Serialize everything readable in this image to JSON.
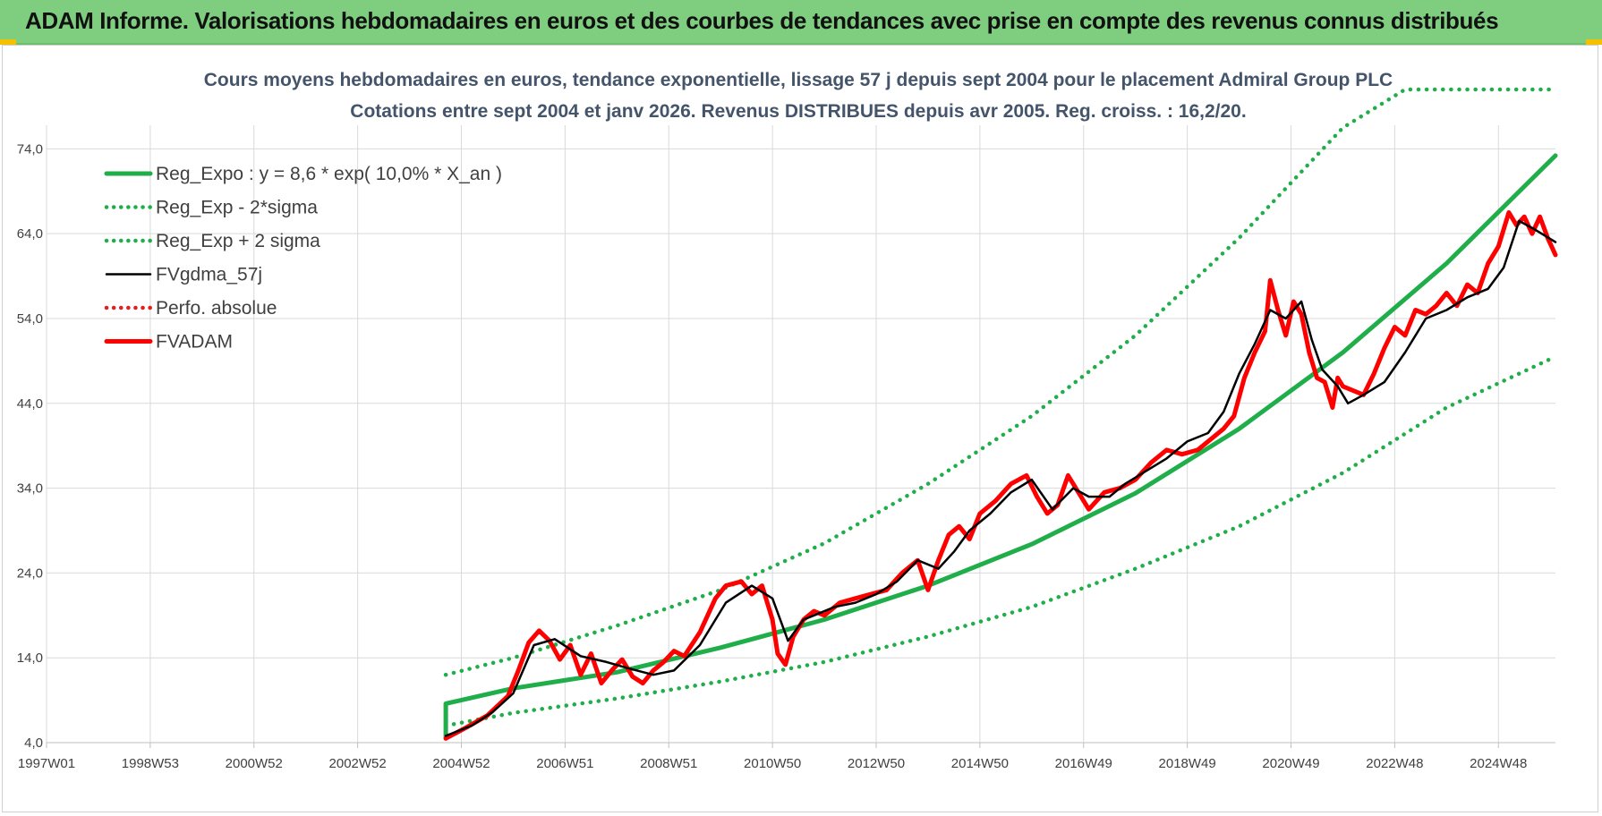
{
  "header": {
    "title": "ADAM Informe. Valorisations hebdomadaires en euros et des courbes de tendances avec prise en compte des revenus connus distribués"
  },
  "colors": {
    "header_bg": "#7fce7f",
    "trend": "#1fae4a",
    "band": "#1fae4a",
    "smooth": "#000000",
    "perf": "#e02020",
    "price": "#ff0000"
  },
  "chart_data": {
    "type": "line",
    "title": "Cours moyens hebdomadaires en euros, tendance exponentielle, lissage 57 j depuis sept 2004 pour le placement Admiral Group PLC",
    "subtitle": "Cotations entre sept 2004 et janv 2026. Revenus DISTRIBUES depuis avr 2005. Reg. croiss. : 16,2/20.",
    "xlabel": "",
    "ylabel": "",
    "x_range": [
      1997.0,
      2026.1
    ],
    "ylim": [
      4,
      81
    ],
    "y_ticks": [
      "4,0",
      "14,0",
      "24,0",
      "34,0",
      "44,0",
      "54,0",
      "64,0",
      "74,0"
    ],
    "y_tick_values": [
      4,
      14,
      24,
      34,
      44,
      54,
      64,
      74
    ],
    "x_ticks": [
      "1997W01",
      "1998W53",
      "2000W52",
      "2002W52",
      "2004W52",
      "2006W51",
      "2008W51",
      "2010W50",
      "2012W50",
      "2014W50",
      "2016W49",
      "2018W49",
      "2020W49",
      "2022W48",
      "2024W48"
    ],
    "x_tick_values": [
      1997.0,
      1999.0,
      2001.0,
      2003.0,
      2005.0,
      2007.0,
      2009.0,
      2011.0,
      2013.0,
      2015.0,
      2017.0,
      2019.0,
      2021.0,
      2023.0,
      2025.0
    ],
    "grid": true,
    "legend_position": "top-left",
    "series": [
      {
        "name": "Reg_Expo : y = 8,6 * exp( 10,0% *  X_an )",
        "style": "solid-thick",
        "color": "#1fae4a",
        "x": [
          2004.7,
          2004.7,
          2006,
          2008,
          2010,
          2012,
          2014,
          2016,
          2018,
          2020,
          2022,
          2024,
          2026.1
        ],
        "y": [
          4.5,
          8.6,
          10.4,
          12.3,
          15.2,
          18.5,
          22.5,
          27.4,
          33.4,
          41.0,
          50.0,
          60.5,
          73.2
        ]
      },
      {
        "name": "Reg_Exp - 2*sigma",
        "style": "dotted",
        "color": "#1fae4a",
        "x": [
          2004.7,
          2006,
          2008,
          2010,
          2012,
          2014,
          2016,
          2018,
          2020,
          2022,
          2024,
          2026.1
        ],
        "y": [
          6.0,
          7.5,
          9.2,
          11.2,
          13.5,
          16.5,
          20.0,
          24.5,
          29.5,
          35.8,
          43.5,
          49.5
        ]
      },
      {
        "name": "Reg_Exp + 2 sigma",
        "style": "dotted",
        "color": "#1fae4a",
        "x": [
          2004.7,
          2006,
          2008,
          2010,
          2012,
          2014,
          2016,
          2018,
          2020,
          2022,
          2023.2,
          2024,
          2026.1
        ],
        "y": [
          12.0,
          14.0,
          17.8,
          22.0,
          27.5,
          34.5,
          42.5,
          52.0,
          63.5,
          76.5,
          81.0,
          81.0,
          81.0
        ]
      },
      {
        "name": "FVgdma_57j",
        "style": "solid",
        "color": "#000000",
        "x": [
          2004.7,
          2005.2,
          2005.6,
          2006.0,
          2006.4,
          2006.8,
          2007.3,
          2007.8,
          2008.2,
          2008.7,
          2009.1,
          2009.6,
          2010.1,
          2010.6,
          2011.0,
          2011.3,
          2011.6,
          2011.8,
          2012.2,
          2012.6,
          2013.0,
          2013.4,
          2013.8,
          2014.2,
          2014.5,
          2014.8,
          2015.2,
          2015.6,
          2016.0,
          2016.4,
          2016.8,
          2017.1,
          2017.5,
          2017.8,
          2018.2,
          2018.6,
          2019.0,
          2019.4,
          2019.7,
          2020.0,
          2020.3,
          2020.6,
          2020.9,
          2021.2,
          2021.4,
          2021.6,
          2021.9,
          2022.1,
          2022.4,
          2022.8,
          2023.2,
          2023.6,
          2024.0,
          2024.4,
          2024.8,
          2025.1,
          2025.4,
          2025.7,
          2026.1
        ],
        "y": [
          4.8,
          6.0,
          7.6,
          9.8,
          15.5,
          16.2,
          14.2,
          13.5,
          12.8,
          12.0,
          12.5,
          15.5,
          20.5,
          22.5,
          21.0,
          16.0,
          18.5,
          19.0,
          20.0,
          20.5,
          21.5,
          23.0,
          25.5,
          24.5,
          26.5,
          29.0,
          31.0,
          33.5,
          35.0,
          31.5,
          34.0,
          33.0,
          33.0,
          34.5,
          36.0,
          37.5,
          39.5,
          40.5,
          43.0,
          47.5,
          51.0,
          55.0,
          54.0,
          56.0,
          51.5,
          48.0,
          46.0,
          44.0,
          45.0,
          46.5,
          50.0,
          54.0,
          55.0,
          56.5,
          57.5,
          60.0,
          65.5,
          64.5,
          63.0
        ]
      },
      {
        "name": "Perfo. absolue",
        "style": "dotted",
        "color": "#e02020",
        "x": [],
        "y": []
      },
      {
        "name": "FVADAM",
        "style": "solid-thick",
        "color": "#ff0000",
        "x": [
          2004.7,
          2005.1,
          2005.5,
          2005.9,
          2006.1,
          2006.3,
          2006.5,
          2006.7,
          2006.9,
          2007.1,
          2007.3,
          2007.5,
          2007.7,
          2007.9,
          2008.1,
          2008.3,
          2008.5,
          2008.7,
          2008.9,
          2009.1,
          2009.3,
          2009.6,
          2009.9,
          2010.1,
          2010.4,
          2010.6,
          2010.8,
          2011.0,
          2011.1,
          2011.25,
          2011.4,
          2011.6,
          2011.8,
          2012.0,
          2012.3,
          2012.6,
          2012.9,
          2013.2,
          2013.5,
          2013.8,
          2014.0,
          2014.2,
          2014.4,
          2014.6,
          2014.8,
          2015.0,
          2015.3,
          2015.6,
          2015.9,
          2016.1,
          2016.3,
          2016.5,
          2016.7,
          2016.9,
          2017.1,
          2017.4,
          2017.7,
          2018.0,
          2018.3,
          2018.6,
          2018.9,
          2019.2,
          2019.5,
          2019.7,
          2019.9,
          2020.1,
          2020.3,
          2020.5,
          2020.6,
          2020.75,
          2020.9,
          2021.05,
          2021.2,
          2021.35,
          2021.5,
          2021.65,
          2021.8,
          2021.9,
          2022.0,
          2022.2,
          2022.4,
          2022.6,
          2022.8,
          2023.0,
          2023.2,
          2023.4,
          2023.6,
          2023.8,
          2024.0,
          2024.2,
          2024.4,
          2024.6,
          2024.8,
          2025.0,
          2025.2,
          2025.35,
          2025.5,
          2025.65,
          2025.8,
          2025.95,
          2026.1
        ],
        "y": [
          4.5,
          5.8,
          7.2,
          9.5,
          12.5,
          15.8,
          17.2,
          16.0,
          13.8,
          15.5,
          12.0,
          14.5,
          11.0,
          12.5,
          13.8,
          11.8,
          11.0,
          12.5,
          13.5,
          14.8,
          14.2,
          17.0,
          21.0,
          22.5,
          23.0,
          21.5,
          22.5,
          18.5,
          14.5,
          13.2,
          16.5,
          18.5,
          19.5,
          19.0,
          20.5,
          21.0,
          21.5,
          22.0,
          24.0,
          25.5,
          22.0,
          25.5,
          28.5,
          29.5,
          28.0,
          31.0,
          32.5,
          34.5,
          35.5,
          33.0,
          31.0,
          32.0,
          35.5,
          33.5,
          31.5,
          33.5,
          34.0,
          35.0,
          37.0,
          38.5,
          38.0,
          38.5,
          40.0,
          41.0,
          42.5,
          47.0,
          50.0,
          52.5,
          58.5,
          55.0,
          52.0,
          56.0,
          54.5,
          50.0,
          47.0,
          46.5,
          43.5,
          47.0,
          46.0,
          45.5,
          45.0,
          47.5,
          50.5,
          53.0,
          52.0,
          55.0,
          54.5,
          55.5,
          57.0,
          55.5,
          58.0,
          57.0,
          60.5,
          62.5,
          66.5,
          65.0,
          66.0,
          64.0,
          66.0,
          63.5,
          61.5
        ]
      }
    ]
  }
}
